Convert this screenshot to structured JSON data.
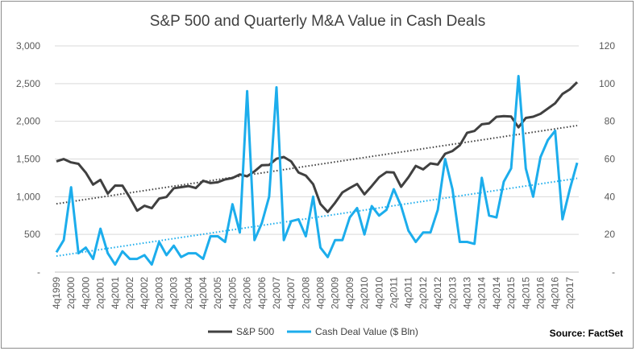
{
  "chart_data": {
    "type": "line",
    "title": "S&P 500 and Quarterly M&A Value in Cash Deals",
    "source": "Source: FactSet",
    "x": [
      "4q1999",
      "1q2000",
      "2q2000",
      "3q2000",
      "4q2000",
      "1q2001",
      "2q2001",
      "3q2001",
      "4q2001",
      "1q2002",
      "2q2002",
      "3q2002",
      "4q2002",
      "1q2003",
      "2q2003",
      "3q2003",
      "4q2003",
      "1q2004",
      "2q2004",
      "3q2004",
      "4q2004",
      "1q2005",
      "2q2005",
      "3q2005",
      "4q2005",
      "1q2006",
      "2q2006",
      "3q2006",
      "4q2006",
      "1q2007",
      "2q2007",
      "3q2007",
      "4q2007",
      "1q2008",
      "2q2008",
      "3q2008",
      "4q2008",
      "1q2009",
      "2q2009",
      "3q2009",
      "4q2009",
      "1q2010",
      "2q2010",
      "3q2010",
      "4q2010",
      "1q2011",
      "2q2011",
      "3q2011",
      "4q2011",
      "1q2012",
      "2q2012",
      "3q2012",
      "4q2012",
      "1q2013",
      "2q2013",
      "3q2013",
      "4q2013",
      "1q2014",
      "2q2014",
      "3q2014",
      "4q2014",
      "1q2015",
      "2q2015",
      "3q2015",
      "4q2015",
      "1q2016",
      "2q2016",
      "3q2016",
      "4q2016",
      "1q2017",
      "2q2017",
      "3q2017"
    ],
    "tick_labels": [
      "4q1999",
      "2q2000",
      "4q2000",
      "2q2001",
      "4q2001",
      "2q2002",
      "4q2002",
      "2q2003",
      "4q2003",
      "2q2004",
      "4q2004",
      "2q2005",
      "4q2005",
      "2q2006",
      "4q2006",
      "2q2007",
      "4q2007",
      "2q2008",
      "4q2008",
      "2q2009",
      "4q2009",
      "2q2010",
      "4q2010",
      "2q2011",
      "4q2011",
      "2q2012",
      "4q2012",
      "2q2013",
      "4q2013",
      "2q2014",
      "4q2014",
      "2q2015",
      "4q2015",
      "2q2016",
      "4q2016",
      "2q2017"
    ],
    "y_left": {
      "min": 0,
      "max": 3000,
      "ticks": [
        "-",
        "500",
        "1,000",
        "1,500",
        "2,000",
        "2,500",
        "3,000"
      ]
    },
    "y_right": {
      "min": 0,
      "max": 120,
      "ticks": [
        "-",
        "20",
        "40",
        "60",
        "80",
        "100",
        "120"
      ]
    },
    "series": [
      {
        "name": "S&P 500",
        "axis": "left",
        "color": "#404040",
        "trendline": true,
        "values": [
          1469,
          1499,
          1455,
          1436,
          1320,
          1160,
          1224,
          1041,
          1148,
          1147,
          990,
          815,
          880,
          848,
          975,
          996,
          1112,
          1126,
          1141,
          1115,
          1212,
          1181,
          1191,
          1229,
          1248,
          1295,
          1270,
          1336,
          1418,
          1421,
          1503,
          1527,
          1468,
          1322,
          1280,
          1166,
          903,
          798,
          919,
          1057,
          1115,
          1169,
          1031,
          1141,
          1258,
          1326,
          1321,
          1131,
          1258,
          1408,
          1362,
          1441,
          1426,
          1569,
          1606,
          1682,
          1848,
          1872,
          1960,
          1972,
          2059,
          2068,
          2063,
          1920,
          2044,
          2060,
          2099,
          2168,
          2239,
          2363,
          2423,
          2519
        ]
      },
      {
        "name": "Cash Deal Value ($ Bln)",
        "axis": "right",
        "color": "#1cadec",
        "trendline": true,
        "values": [
          10.5,
          17,
          45,
          10,
          13,
          7,
          23,
          10,
          4,
          11,
          7,
          7,
          9,
          4,
          16,
          9,
          14,
          8,
          10,
          10,
          7,
          19,
          19,
          16,
          36,
          21,
          96,
          17,
          26,
          40,
          98,
          17,
          27,
          28,
          19,
          40,
          13,
          8,
          17,
          17,
          29,
          34,
          20,
          35,
          30,
          33,
          44,
          35,
          22,
          16,
          21,
          21,
          33,
          60,
          44,
          16,
          16,
          15,
          50,
          30,
          29,
          48,
          55,
          104,
          55,
          40,
          61,
          70,
          75,
          28,
          44,
          58
        ]
      }
    ]
  }
}
